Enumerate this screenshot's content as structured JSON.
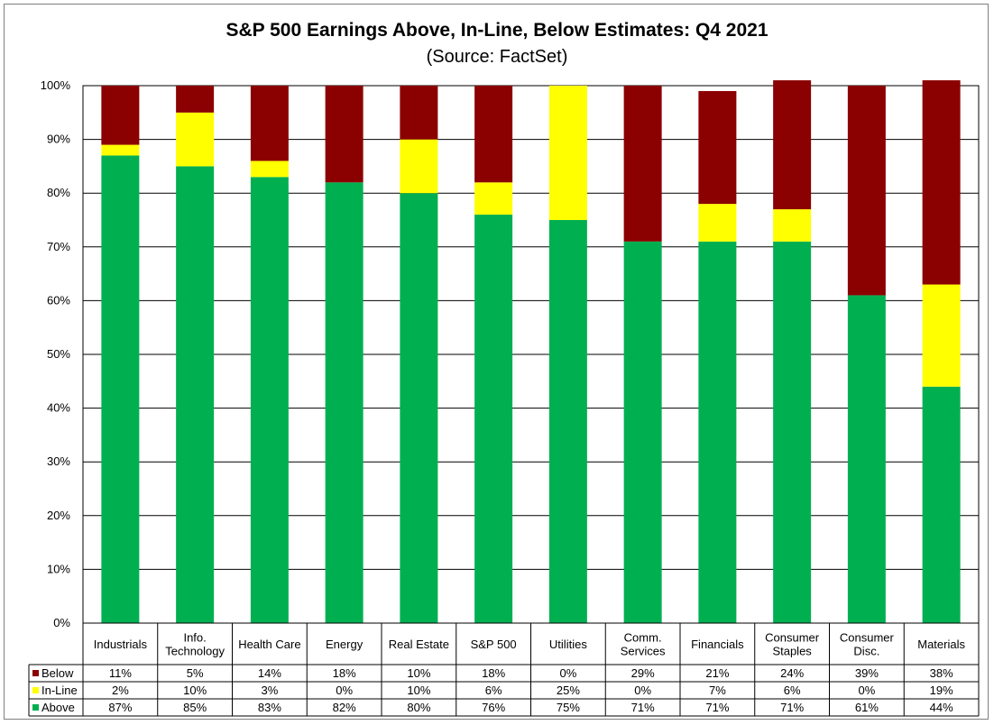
{
  "chart_data": {
    "type": "bar",
    "stacked": true,
    "title": "S&P 500 Earnings Above, In-Line, Below Estimates: Q4 2021",
    "subtitle": "(Source: FactSet)",
    "categories": [
      [
        "Industrials"
      ],
      [
        "Info.",
        "Technology"
      ],
      [
        "Health Care"
      ],
      [
        "Energy"
      ],
      [
        "Real Estate"
      ],
      [
        "S&P 500"
      ],
      [
        "Utilities"
      ],
      [
        "Comm.",
        "Services"
      ],
      [
        "Financials"
      ],
      [
        "Consumer",
        "Staples"
      ],
      [
        "Consumer",
        "Disc."
      ],
      [
        "Materials"
      ]
    ],
    "series": [
      {
        "name": "Below",
        "color": "#8b0000",
        "values": [
          11,
          5,
          14,
          18,
          10,
          18,
          0,
          29,
          21,
          24,
          39,
          38
        ],
        "labels": [
          "11%",
          "5%",
          "14%",
          "18%",
          "10%",
          "18%",
          "0%",
          "29%",
          "21%",
          "24%",
          "39%",
          "38%"
        ]
      },
      {
        "name": "In-Line",
        "color": "#ffff00",
        "values": [
          2,
          10,
          3,
          0,
          10,
          6,
          25,
          0,
          7,
          6,
          0,
          19
        ],
        "labels": [
          "2%",
          "10%",
          "3%",
          "0%",
          "10%",
          "6%",
          "25%",
          "0%",
          "7%",
          "6%",
          "0%",
          "19%"
        ]
      },
      {
        "name": "Above",
        "color": "#00b050",
        "values": [
          87,
          85,
          83,
          82,
          80,
          76,
          75,
          71,
          71,
          71,
          61,
          44
        ],
        "labels": [
          "87%",
          "85%",
          "83%",
          "82%",
          "80%",
          "76%",
          "75%",
          "71%",
          "71%",
          "71%",
          "61%",
          "44%"
        ]
      }
    ],
    "stack_order": [
      "Above",
      "In-Line",
      "Below"
    ],
    "yticks": [
      "0%",
      "10%",
      "20%",
      "30%",
      "40%",
      "50%",
      "60%",
      "70%",
      "80%",
      "90%",
      "100%"
    ],
    "ylim": [
      0,
      100
    ],
    "grid": true,
    "legend": "data-table"
  }
}
